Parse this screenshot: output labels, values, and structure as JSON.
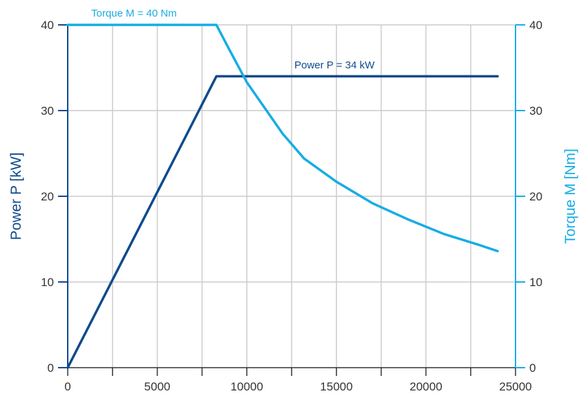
{
  "chart_data": {
    "type": "line",
    "ylabel": "Power P [kW]",
    "y2label": "Torque M [Nm]",
    "xlim": [
      0,
      25000
    ],
    "ylim": [
      0,
      40
    ],
    "y2lim": [
      0,
      40
    ],
    "x_ticks": [
      "0",
      "5000",
      "10000",
      "15000",
      "20000",
      "25000"
    ],
    "y_ticks": [
      "0",
      "10",
      "20",
      "30",
      "40"
    ],
    "y2_ticks": [
      "0",
      "10",
      "20",
      "30",
      "40"
    ],
    "grid": true,
    "colors": {
      "power": "#0d4a8c",
      "torque": "#17ade4",
      "grid": "#cccccc",
      "left_axis": "#0d4a8c",
      "right_axis": "#17ade4",
      "bottom_axis": "#333333"
    },
    "series": [
      {
        "axis": "left",
        "x": [
          0,
          8300,
          24000
        ],
        "values": [
          0,
          34,
          34
        ]
      },
      {
        "axis": "right",
        "x": [
          0,
          8300,
          9000,
          10000,
          11000,
          12000,
          13200,
          15000,
          17000,
          19000,
          21000,
          23000,
          24000
        ],
        "values": [
          40,
          40,
          37.2,
          33.3,
          30.3,
          27.3,
          24.4,
          21.7,
          19.2,
          17.3,
          15.6,
          14.3,
          13.6
        ]
      }
    ],
    "annotations": [
      {
        "text": "Torque M = 40 Nm",
        "series": "torque"
      },
      {
        "text": "Power P = 34 kW",
        "series": "power"
      }
    ]
  }
}
